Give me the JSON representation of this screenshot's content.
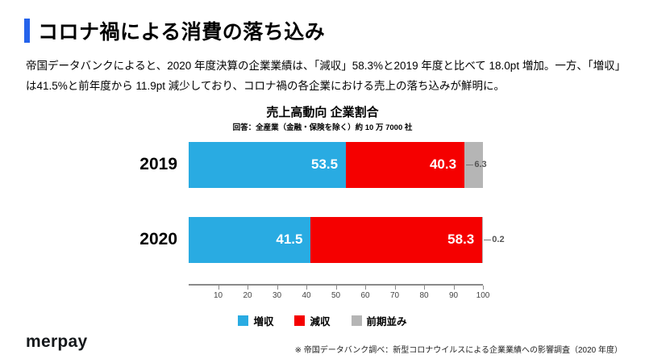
{
  "header": {
    "title": "コロナ禍による消費の落ち込み",
    "accent_color": "#2563eb"
  },
  "intro": {
    "text": "帝国データバンクによると、2020 年度決算の企業業績は、「減収」58.3%と2019 年度と比べて 18.0pt 増加。一方、「増収」は41.5%と前年度から 11.9pt 減少しており、コロナ禍の各企業における売上の落ち込みが鮮明に。"
  },
  "chart_data": {
    "type": "bar",
    "orientation": "horizontal",
    "stacked": true,
    "title": "売上高動向 企業割合",
    "subtitle": "回答：全産業（金融・保険を除く）約 10 万 7000 社",
    "categories": [
      "2019",
      "2020"
    ],
    "series": [
      {
        "name": "増収",
        "key": "increase",
        "color": "#29abe2",
        "values": [
          53.5,
          41.5
        ]
      },
      {
        "name": "減収",
        "key": "decrease",
        "color": "#f50000",
        "values": [
          40.3,
          58.3
        ]
      },
      {
        "name": "前期並み",
        "key": "flat",
        "color": "#b5b5b5",
        "values": [
          6.3,
          0.2
        ]
      }
    ],
    "xlim": [
      0,
      100
    ],
    "x_ticks": [
      10,
      20,
      30,
      40,
      50,
      60,
      70,
      80,
      90,
      100
    ],
    "legend_position": "bottom",
    "grid": false
  },
  "footer": {
    "logo": "merpay",
    "note": "※ 帝国データバンク調べ：新型コロナウイルスによる企業業績への影響調査（2020 年度）"
  }
}
